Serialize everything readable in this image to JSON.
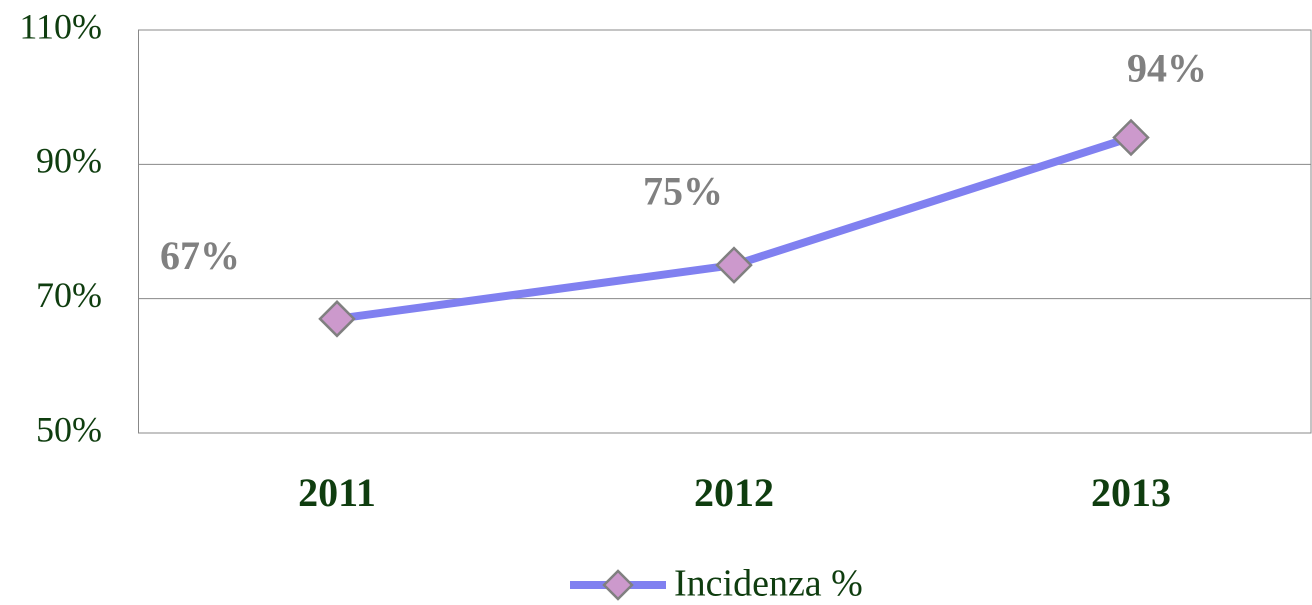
{
  "chart_data": {
    "type": "line",
    "categories": [
      "2011",
      "2012",
      "2013"
    ],
    "series": [
      {
        "name": "Incidenza %",
        "color": "#8080f0",
        "marker_color": "#cc99cc",
        "values": [
          67,
          75,
          94
        ],
        "value_labels": [
          "67%",
          "75%",
          "94%"
        ]
      }
    ],
    "ylim": [
      50,
      110
    ],
    "yticks": [
      {
        "value": 50,
        "label": "50%"
      },
      {
        "value": 70,
        "label": "70%"
      },
      {
        "value": 90,
        "label": "90%"
      },
      {
        "value": 110,
        "label": "110%"
      }
    ],
    "grid": true,
    "legend": "bottom"
  }
}
